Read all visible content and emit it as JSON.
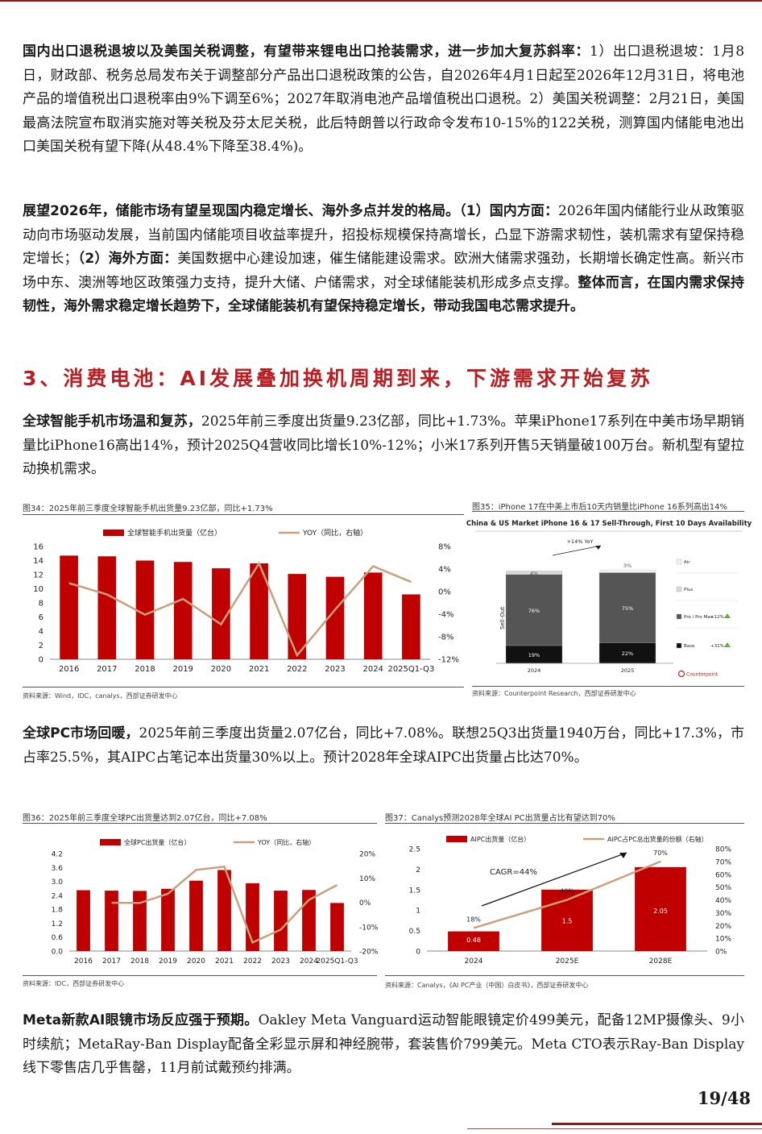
{
  "paragraphs": {
    "p1": {
      "lead": "国内出口退税退坡以及美国关税调整，有望带来锂电出口抢装需求，进一步加大复苏斜率：",
      "text": "1）出口退税退坡：1月8日，财政部、税务总局发布关于调整部分产品出口退税政策的公告，自2026年4月1日起至2026年12月31日，将电池产品的增值税出口退税率由9%下调至6%；2027年取消电池产品增值税出口退税。2）美国关税调整：2月21日，美国最高法院宣布取消实施对等关税及芬太尼关税，此后特朗普以行政命令发布10-15%的122关税，测算国内储能电池出口美国关税有望下降(从48.4%下降至38.4%)。"
    },
    "p2": {
      "lead": "展望2026年，储能市场有望呈现国内稳定增长、海外多点并发的格局。（1）国内方面：",
      "text1": "2026年国内储能行业从政策驱动向市场驱动发展，当前国内储能项目收益率提升，招投标规模保持高增长，凸显下游需求韧性，装机需求有望保持稳定增长；",
      "lead2": "（2）海外方面：",
      "text2": "美国数据中心建设加速，催生储能建设需求。欧洲大储需求强劲，长期增长确定性高。新兴市场中东、澳洲等地区政策强力支持，提升大储、户储需求，对全球储能装机形成多点支撑。",
      "tail": "整体而言，在国内需求保持韧性，海外需求稳定增长趋势下，全球储能装机有望保持稳定增长，带动我国电芯需求提升。"
    },
    "p3": {
      "lead": "全球智能手机市场温和复苏，",
      "text": "2025年前三季度出货量9.23亿部，同比+1.73%。苹果iPhone17系列在中美市场早期销量比iPhone16高出14%，预计2025Q4营收同比增长10%-12%；小米17系列开售5天销量破100万台。新机型有望拉动换机需求。"
    },
    "p4": {
      "lead": "全球PC市场回暖，",
      "text": "2025年前三季度出货量2.07亿台，同比+7.08%。联想25Q3出货量1940万台，同比+17.3%，市占率25.5%，其AIPC占笔记本出货量30%以上。预计2028年全球AIPC出货量占比达70%。"
    },
    "p5": {
      "lead": "Meta新款AI眼镜市场反应强于预期。",
      "text": "Oakley Meta Vanguard运动智能眼镜定价499美元，配备12MP摄像头、9小时续航；MetaRay-Ban Display配备全彩显示屏和神经腕带，套装售价799美元。Meta CTO表示Ray-Ban Display线下零售店几乎售罄，11月前试戴预约排满。"
    }
  },
  "section_title": "3、消费电池：AI发展叠加换机周期到来，下游需求开始复苏",
  "figures": {
    "fig34": {
      "title": "图34：2025年前三季度全球智能手机出货量9.23亿部，同比+1.73%",
      "source": "资料来源：Wind，IDC，canalys，西部证券研发中心"
    },
    "fig35": {
      "title": "图35：iPhone 17在中美上市后10天内销量比iPhone 16系列高出14%",
      "source": "资料来源：Counterpoint Research，西部证券研发中心"
    },
    "fig36": {
      "title": "图36：2025年前三季度全球PC出货量达到2.07亿台，同比+7.08%",
      "source": "资料来源：IDC，西部证券研发中心"
    },
    "fig37": {
      "title": "图37：Canalys预测2028年全球AI PC出货量占比有望达到70%",
      "source": "资料来源：Canalys，《AI PC产业（中国）白皮书》，西部证券研发中心"
    }
  },
  "colors": {
    "bar": "#c00000",
    "line": "#c8a07e",
    "accent": "#b81e22",
    "dark_gray": "#555555",
    "black": "#111111"
  },
  "chart_data": [
    {
      "id": "fig34",
      "type": "bar+line",
      "categories": [
        "2016",
        "2017",
        "2018",
        "2019",
        "2020",
        "2021",
        "2022",
        "2023",
        "2024",
        "2025Q1-Q3"
      ],
      "series": [
        {
          "name": "全球智能手机出货量（亿台）",
          "type": "bar",
          "axis": "left",
          "values": [
            14.7,
            14.6,
            14.0,
            13.8,
            12.9,
            13.6,
            12.1,
            11.7,
            12.3,
            9.2
          ]
        },
        {
          "name": "YOY（同比，右轴）",
          "type": "line",
          "axis": "right",
          "values": [
            1.5,
            -0.5,
            -4.1,
            -1.3,
            -5.8,
            5.0,
            -11.3,
            -3.2,
            4.5,
            1.7
          ]
        }
      ],
      "ylim": [
        0,
        16
      ],
      "yticks": [
        "0",
        "2",
        "4",
        "6",
        "8",
        "10",
        "12",
        "14",
        "16"
      ],
      "y2lim": [
        -12,
        8
      ],
      "y2ticks": [
        "8%",
        "4%",
        "0%",
        "-4%",
        "-8%",
        "-12%"
      ]
    },
    {
      "id": "fig35",
      "type": "bar",
      "title": "China & US Market iPhone 16 & 17 Sell-Through, First 10 Days Availability",
      "categories": [
        "2024",
        "2025"
      ],
      "ylabel": "Sell-Out",
      "series": [
        {
          "name": "Base",
          "values": [
            19,
            22
          ],
          "labels": [
            "19%",
            "22%"
          ],
          "color": "#111111"
        },
        {
          "name": "Pro / Pro Max",
          "values": [
            76,
            75
          ],
          "labels": [
            "76%",
            "75%"
          ],
          "color": "#555555"
        },
        {
          "name": "Plus",
          "values": [
            4,
            0
          ],
          "labels": [
            "4%",
            ""
          ],
          "color": "#d8d8d8"
        },
        {
          "name": "Air",
          "values": [
            0,
            3
          ],
          "labels": [
            "",
            "3%"
          ],
          "color": "#f2f2f2"
        }
      ],
      "annotation": "+14% YoY",
      "legend_growth": {
        "Pro / Pro Max": "+12%",
        "Base": "+31%"
      },
      "brand": "Counterpoint"
    },
    {
      "id": "fig36",
      "type": "bar+line",
      "categories": [
        "2016",
        "2017",
        "2018",
        "2019",
        "2020",
        "2021",
        "2022",
        "2023",
        "2024",
        "2025Q1-Q3"
      ],
      "series": [
        {
          "name": "全球PC出货量（亿台）",
          "type": "bar",
          "axis": "left",
          "values": [
            2.62,
            2.6,
            2.59,
            2.68,
            3.03,
            3.49,
            2.92,
            2.6,
            2.63,
            2.07
          ]
        },
        {
          "name": "YOY（同比，右轴）",
          "type": "line",
          "axis": "right",
          "values": [
            null,
            -0.2,
            -0.3,
            3.5,
            13.3,
            14.6,
            -16.5,
            -11.2,
            1.0,
            7.08
          ]
        }
      ],
      "ylim": [
        0,
        4.2
      ],
      "yticks": [
        "0.0",
        "0.6",
        "1.2",
        "1.8",
        "2.4",
        "3.0",
        "3.6",
        "4.2"
      ],
      "y2lim": [
        -20,
        20
      ],
      "y2ticks": [
        "20%",
        "10%",
        "0%",
        "-10%",
        "-20%"
      ]
    },
    {
      "id": "fig37",
      "type": "bar+line",
      "categories": [
        "2024",
        "2025E",
        "2028E"
      ],
      "series": [
        {
          "name": "AIPC出货量（亿台）",
          "type": "bar",
          "axis": "left",
          "values": [
            0.48,
            1.5,
            2.05
          ],
          "labels": [
            "0.48",
            "1.5",
            "2.05"
          ]
        },
        {
          "name": "AIPC占PC总出货量的份额（右轴）",
          "type": "line",
          "axis": "right",
          "values": [
            18,
            40,
            70
          ],
          "labels": [
            "18%",
            "40%",
            "70%"
          ]
        }
      ],
      "annotation": "CAGR=44%",
      "ylim": [
        0,
        2.5
      ],
      "yticks": [
        "0",
        "0.5",
        "1",
        "1.5",
        "2",
        "2.5"
      ],
      "y2lim": [
        0,
        80
      ],
      "y2ticks": [
        "0%",
        "10%",
        "20%",
        "30%",
        "40%",
        "50%",
        "60%",
        "70%",
        "80%"
      ]
    }
  ],
  "page_number": "19/48"
}
